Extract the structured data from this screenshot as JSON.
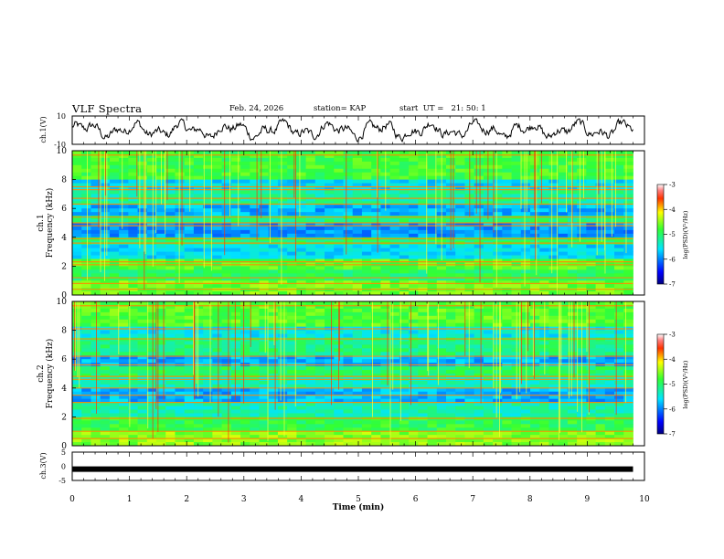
{
  "header": {
    "title": "VLF Spectra",
    "date": "Feb. 24, 2026",
    "station": "station= KAP",
    "start": "start  UT =   21: 50: 1"
  },
  "chart_data": [
    {
      "type": "line",
      "panel": "ch1-waveform",
      "ylabel": "ch.1(V)",
      "ylim": [
        -10,
        10
      ],
      "yticks": [
        "10",
        "-10"
      ],
      "xlim": [
        0,
        10
      ],
      "series": [
        {
          "name": "ch.1 voltage",
          "description_range": [
            -10,
            10
          ]
        }
      ]
    },
    {
      "type": "heatmap",
      "panel": "ch1-spectrogram",
      "ylabel_top": "ch.1",
      "ylabel": "Frequency (kHz)",
      "ylim": [
        0,
        10
      ],
      "yticks": [
        "0",
        "2",
        "4",
        "6",
        "8",
        "10"
      ],
      "xlim": [
        0,
        9.8
      ],
      "colorbar": {
        "label": "log(PSD)(V²/Hz)",
        "range": [
          -7,
          -3
        ],
        "ticks": [
          "-3",
          "-4",
          "-5",
          "-6",
          "-7"
        ]
      },
      "bands_khz": [
        {
          "lo": 0.0,
          "hi": 1.0,
          "level": -4.6
        },
        {
          "lo": 1.0,
          "hi": 1.8,
          "level": -5.0
        },
        {
          "lo": 1.8,
          "hi": 2.4,
          "level": -4.7
        },
        {
          "lo": 2.4,
          "hi": 3.5,
          "level": -5.6
        },
        {
          "lo": 3.5,
          "hi": 4.0,
          "level": -5.0
        },
        {
          "lo": 4.0,
          "hi": 5.0,
          "level": -5.9
        },
        {
          "lo": 5.0,
          "hi": 5.5,
          "level": -5.1
        },
        {
          "lo": 5.5,
          "hi": 6.2,
          "level": -5.8
        },
        {
          "lo": 6.2,
          "hi": 7.2,
          "level": -5.2
        },
        {
          "lo": 7.2,
          "hi": 8.0,
          "level": -5.6
        },
        {
          "lo": 8.0,
          "hi": 10.0,
          "level": -4.8
        }
      ],
      "lines_khz": [
        0.4,
        0.8,
        1.2,
        2.1,
        2.3,
        3.6,
        3.9,
        4.8,
        5.0,
        5.4,
        6.3,
        6.7,
        7.3,
        7.5,
        9.7
      ]
    },
    {
      "type": "heatmap",
      "panel": "ch2-spectrogram",
      "ylabel_top": "ch.2",
      "ylabel": "Frequency (kHz)",
      "ylim": [
        0,
        10
      ],
      "yticks": [
        "0",
        "2",
        "4",
        "6",
        "8",
        "10"
      ],
      "xlim": [
        0,
        9.8
      ],
      "colorbar": {
        "label": "log(PSD)(V²/Hz)",
        "range": [
          -7,
          -3
        ],
        "ticks": [
          "-3",
          "-4",
          "-5",
          "-6",
          "-7"
        ]
      },
      "bands_khz": [
        {
          "lo": 0.0,
          "hi": 1.0,
          "level": -4.5
        },
        {
          "lo": 1.0,
          "hi": 1.9,
          "level": -4.9
        },
        {
          "lo": 1.9,
          "hi": 3.0,
          "level": -5.3
        },
        {
          "lo": 3.0,
          "hi": 4.0,
          "level": -5.8
        },
        {
          "lo": 4.0,
          "hi": 4.8,
          "level": -5.3
        },
        {
          "lo": 4.8,
          "hi": 5.6,
          "level": -5.0
        },
        {
          "lo": 5.6,
          "hi": 6.2,
          "level": -5.8
        },
        {
          "lo": 6.2,
          "hi": 7.4,
          "level": -5.1
        },
        {
          "lo": 7.4,
          "hi": 8.2,
          "level": -5.5
        },
        {
          "lo": 8.2,
          "hi": 10.0,
          "level": -4.7
        }
      ],
      "lines_khz": [
        0.5,
        1.0,
        1.9,
        3.0,
        3.5,
        4.0,
        4.6,
        4.8,
        5.6,
        6.2,
        7.4,
        8.1,
        9.7
      ]
    },
    {
      "type": "line",
      "panel": "ch3-waveform",
      "ylabel": "ch.3(V)",
      "ylim": [
        -5,
        5
      ],
      "yticks": [
        "5",
        "0",
        "-5"
      ],
      "xlabel": "Time (min)",
      "xlim": [
        0,
        10
      ],
      "xticks": [
        "0",
        "1",
        "2",
        "3",
        "4",
        "5",
        "6",
        "7",
        "8",
        "9",
        "10"
      ],
      "series": [
        {
          "name": "ch.3 voltage",
          "constant": -1.0,
          "xrange": [
            0,
            9.8
          ]
        }
      ]
    }
  ]
}
